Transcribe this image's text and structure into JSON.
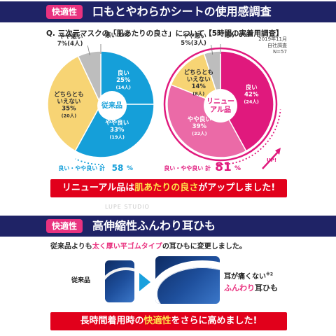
{
  "section1": {
    "tag": "快適性",
    "title": "口もとやわらかシートの使用感調査"
  },
  "question": "Q. 三次元マスクの「肌あたりの良さ」について【5時間の実着用調査】",
  "survey_note": {
    "date": "2019年11月",
    "source": "自社調査",
    "n": "N=57"
  },
  "chart_data": [
    {
      "type": "pie",
      "center_label": "従来品",
      "slices": [
        {
          "label": "良い",
          "value": 25,
          "count": "(14人)",
          "color": "#159fd9"
        },
        {
          "label": "やや良い",
          "value": 33,
          "count": "(19人)",
          "color": "#159fd9"
        },
        {
          "label": "どちらとも いえない",
          "value": 35,
          "count": "(20人)",
          "color": "#f7d474"
        },
        {
          "label": "やや悪い",
          "value": 7,
          "count": "(4人)",
          "color": "#bdbdbd"
        },
        {
          "label": "悪い",
          "value": 0,
          "count": "",
          "color": "#bdbdbd"
        }
      ],
      "summary_label": "良い・やや良い 計",
      "summary_value": "58",
      "summary_unit": "%"
    },
    {
      "type": "pie",
      "center_label": "リニュー アル品",
      "slices": [
        {
          "label": "良い",
          "value": 42,
          "count": "(24人)",
          "color": "#e0197d"
        },
        {
          "label": "やや良い",
          "value": 39,
          "count": "(22人)",
          "color": "#eb6aa7"
        },
        {
          "label": "どちらとも いえない",
          "value": 14,
          "count": "(8人)",
          "color": "#f7d474"
        },
        {
          "label": "やや悪い",
          "value": 5,
          "count": "(3人)",
          "color": "#bdbdbd"
        },
        {
          "label": "悪い",
          "value": 0,
          "count": "",
          "color": "#bdbdbd"
        }
      ],
      "summary_label": "良い・やや良い 計",
      "summary_value": "81",
      "summary_unit": "%",
      "up_label": "UP!"
    }
  ],
  "result_banner": {
    "pre": "リニューアル品は",
    "highlight": "肌あたりの良さ",
    "post": "がアップしました!"
  },
  "watermark": "LUPE STUDIO",
  "section2": {
    "tag": "快適性",
    "title": "高伸縮性ふんわり耳ひも"
  },
  "description": {
    "pre": "従来品よりも",
    "highlight": "太く厚い平ゴムタイプ",
    "post": "の耳ひもに変更しました。"
  },
  "conventional_label": "従来品",
  "ear_text": {
    "line1": "耳が痛くない",
    "mark": "※2",
    "highlight": "ふんわり",
    "line2_post": "耳ひも"
  },
  "bottom_banner": {
    "pre": "長時間着用時の",
    "highlight": "快適性",
    "post": "をさらに高めました!"
  }
}
